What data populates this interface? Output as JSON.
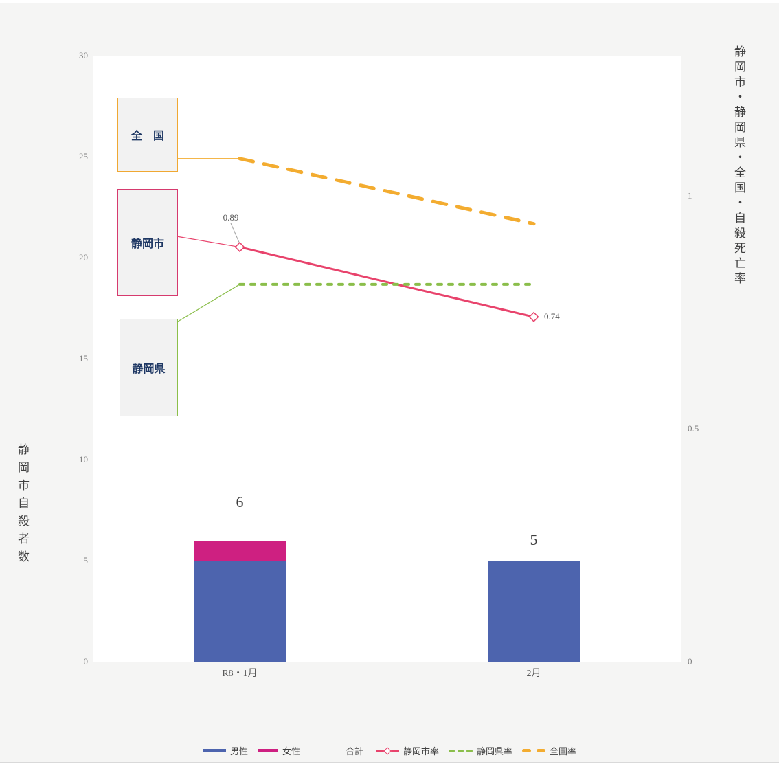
{
  "colors": {
    "bg": "#f5f5f4",
    "plot_bg": "#ffffff",
    "grid": "#e2e2e2",
    "baseline": "#c9c9c9",
    "male": "#4d64ae",
    "female": "#ce2081",
    "city_line": "#e8436c",
    "pref_line": "#8bbe4b",
    "national_line": "#f3ac30",
    "national_box_border": "#f0a832",
    "city_box_border": "#d63a6e",
    "pref_box_border": "#8cbf4a",
    "box_fill": "#f2f2f2",
    "box_text": "#1f3864",
    "axis_text": "#808080",
    "legend_text": "#404040",
    "callout": "#a0a0a0"
  },
  "chart_data": {
    "type": "bar+line combo (stacked bars on left axis, rate lines on right axis)",
    "categories": [
      "R8・1月",
      "2月"
    ],
    "bar_series": [
      {
        "name": "男性",
        "values": [
          5,
          5
        ]
      },
      {
        "name": "女性",
        "values": [
          1,
          0
        ]
      }
    ],
    "stack_total_labels": [
      "6",
      "5"
    ],
    "line_series": [
      {
        "name": "静岡市率",
        "axis": "right",
        "style": "solid",
        "marker": "open-diamond",
        "values": [
          0.89,
          0.74
        ],
        "point_labels": [
          "0.89",
          "0.74"
        ]
      },
      {
        "name": "静岡県率",
        "axis": "right",
        "style": "dashed",
        "values": [
          0.81,
          0.81
        ]
      },
      {
        "name": "全国率",
        "axis": "right",
        "style": "dashed",
        "values": [
          1.08,
          0.94
        ]
      }
    ],
    "left_axis": {
      "title": "静岡市自殺者数",
      "ticks": [
        30,
        25,
        20,
        15,
        10,
        5,
        0
      ],
      "range": [
        0,
        30
      ],
      "grid": true
    },
    "right_axis": {
      "title": "静岡市・静岡県・全国・自殺死亡率",
      "ticks": [
        "1",
        "0.5",
        "0"
      ],
      "tick_values": [
        1,
        0.5,
        0
      ],
      "range": [
        0,
        1.3
      ]
    },
    "legend": {
      "position": "bottom",
      "items": [
        "男性",
        "女性",
        "合計",
        "静岡市率",
        "静岡県率",
        "全国率"
      ]
    },
    "annotations": {
      "national_box": "全　国",
      "city_box": "静岡市",
      "pref_box": "静岡県"
    }
  }
}
